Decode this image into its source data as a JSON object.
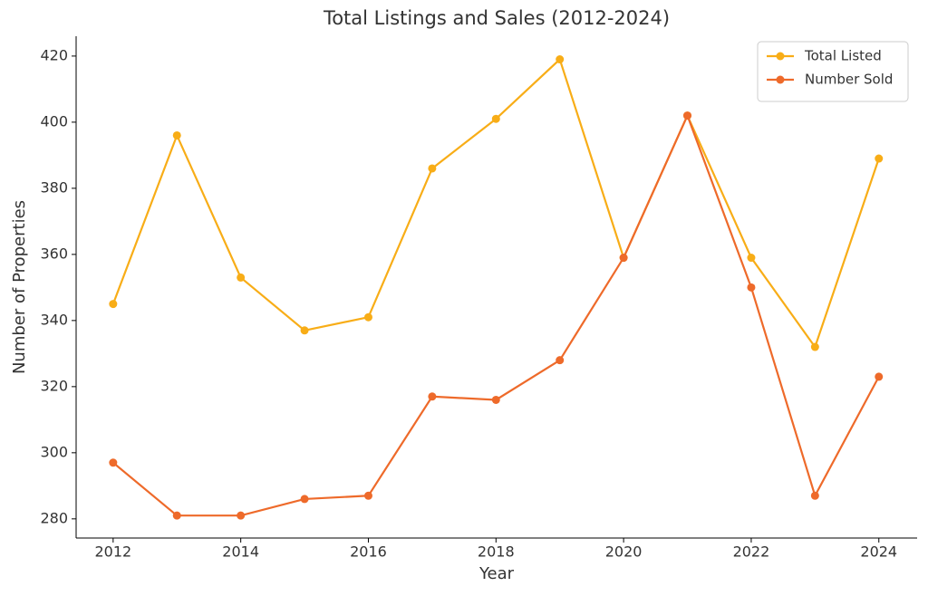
{
  "chart_data": {
    "type": "line",
    "title": "Total Listings and Sales (2012-2024)",
    "x_label": "Year",
    "y_label": "Number of Properties",
    "x": [
      2012,
      2013,
      2014,
      2015,
      2016,
      2017,
      2018,
      2019,
      2020,
      2021,
      2022,
      2023,
      2024
    ],
    "series": [
      {
        "name": "Total Listed",
        "color": "#f8ad17",
        "values": [
          345,
          396,
          353,
          337,
          341,
          386,
          401,
          419,
          359,
          402,
          359,
          332,
          389
        ]
      },
      {
        "name": "Number Sold",
        "color": "#ee6a2a",
        "values": [
          297,
          281,
          281,
          286,
          287,
          317,
          316,
          328,
          359,
          402,
          350,
          287,
          323
        ]
      }
    ],
    "xlim": [
      2011.42,
      2024.6
    ],
    "xticks": [
      2012,
      2014,
      2016,
      2018,
      2020,
      2022,
      2024
    ],
    "ylim": [
      274.2,
      426
    ],
    "yticks": [
      280,
      300,
      320,
      340,
      360,
      380,
      400,
      420
    ],
    "grid": false,
    "legend": "upper right"
  }
}
